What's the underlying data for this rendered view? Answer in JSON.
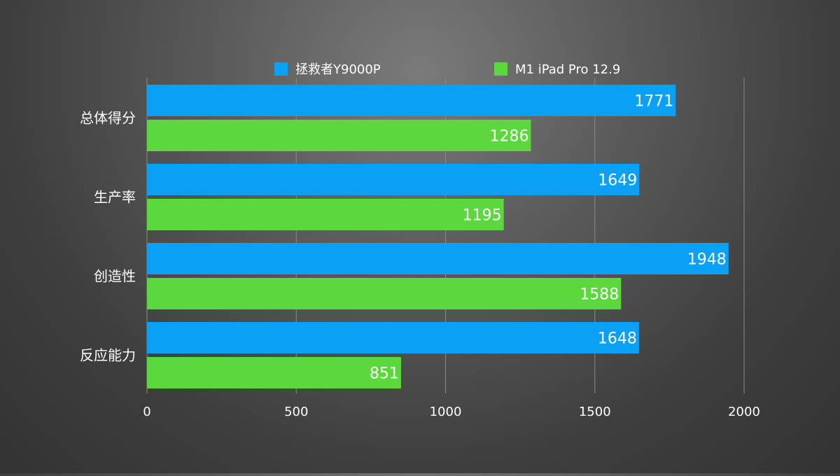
{
  "chart_data": {
    "type": "bar",
    "orientation": "horizontal",
    "title": "",
    "xlabel": "",
    "ylabel": "",
    "categories": [
      "总体得分",
      "生产率",
      "创造性",
      "反应能力"
    ],
    "series": [
      {
        "name": "拯救者Y9000P",
        "color": "#0aa0f5",
        "values": [
          1771,
          1649,
          1948,
          1648
        ]
      },
      {
        "name": "M1 iPad Pro 12.9",
        "color": "#5ad83c",
        "values": [
          1286,
          1195,
          1588,
          851
        ]
      }
    ],
    "xlim": [
      0,
      2000
    ],
    "xticks": [
      0,
      500,
      1000,
      1500,
      2000
    ],
    "grid": true,
    "legend_position": "top-center",
    "data_labels": true,
    "colors": {
      "tick_text": "#ffffff",
      "category_text": "#ffffff",
      "legend_text": "#ffffff",
      "value_text": "#ffffff",
      "gridline": "#8a8a8a"
    }
  }
}
